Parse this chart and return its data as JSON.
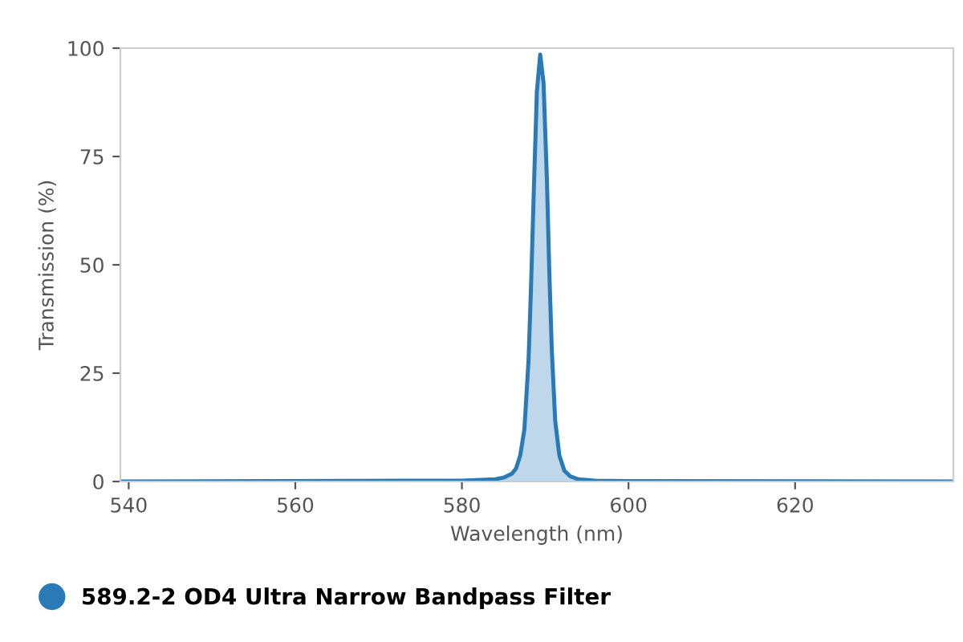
{
  "chart_data": {
    "type": "area",
    "xlabel": "Wavelength (nm)",
    "ylabel": "Transmission (%)",
    "x": [
      539,
      580,
      584,
      585,
      586,
      586.5,
      587,
      587.5,
      588,
      588.3,
      588.6,
      589,
      589.4,
      589.8,
      590.2,
      590.5,
      590.8,
      591.2,
      591.7,
      592.3,
      593,
      594,
      596,
      600,
      639
    ],
    "series": [
      {
        "name": "589.2-2 OD4 Ultra Narrow Bandpass Filter",
        "color": "#2a7ab8",
        "values": [
          0,
          0.2,
          0.5,
          0.9,
          1.8,
          3,
          6,
          12,
          28,
          45,
          65,
          90,
          98.5,
          92,
          70,
          48,
          30,
          14,
          6,
          2.5,
          1.2,
          0.5,
          0.2,
          0.1,
          0
        ]
      }
    ],
    "xlim": [
      539,
      639
    ],
    "xticks": [
      540,
      560,
      580,
      600,
      620
    ],
    "ylim": [
      0,
      100
    ],
    "yticks": [
      0,
      25,
      50,
      75,
      100
    ],
    "grid": false,
    "legend": "bottom left",
    "marker": "none",
    "line_style": "solid"
  }
}
